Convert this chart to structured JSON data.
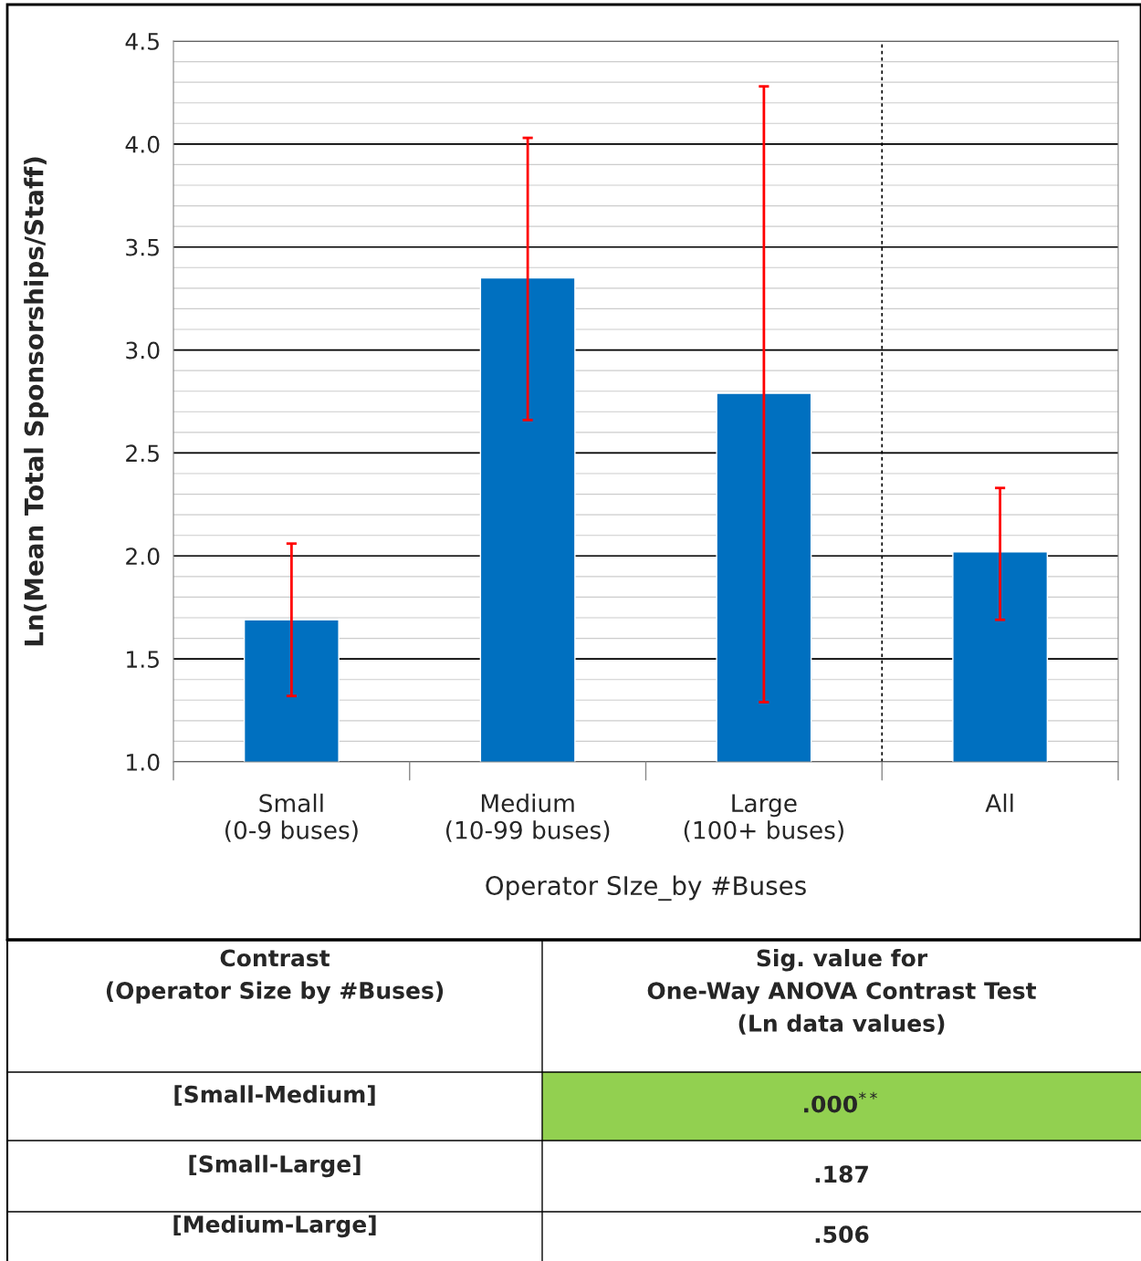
{
  "chart_data": {
    "type": "bar",
    "categories": [
      "Small\n(0-9 buses)",
      "Medium\n(10-99 buses)",
      "Large\n(100+ buses)",
      "All"
    ],
    "values": [
      1.69,
      3.35,
      2.79,
      2.02
    ],
    "errors": [
      [
        1.32,
        2.06
      ],
      [
        2.66,
        4.03
      ],
      [
        1.29,
        4.28
      ],
      [
        1.69,
        2.33
      ]
    ],
    "color": "#0070c0",
    "xlabel": "Operator SIze_by #Buses",
    "ylabel": "Ln(Mean Total Sponsorships/Staff)",
    "ylim": [
      1.0,
      4.5
    ],
    "yticks": [
      {
        "value": 1.0,
        "label": "1.0"
      },
      {
        "value": 1.5,
        "label": "1.5"
      },
      {
        "value": 2.0,
        "label": "2.0"
      },
      {
        "value": 2.5,
        "label": "2.5"
      },
      {
        "value": 3.0,
        "label": "3.0"
      },
      {
        "value": 3.5,
        "label": "3.5"
      },
      {
        "value": 4.0,
        "label": "4.0"
      },
      {
        "value": 4.5,
        "label": "4.5"
      }
    ],
    "grid": "y",
    "annotations": [
      "Contrast\n(Operator Size by #Buses)",
      "Sig. value for\nOne-Way ANOVA Contrast Test\n(Ln data values)",
      "[Small-Medium]",
      ".000$^{**}$",
      "[Small-Large]",
      ".187",
      "[Medium-Large]",
      ".506"
    ]
  }
}
